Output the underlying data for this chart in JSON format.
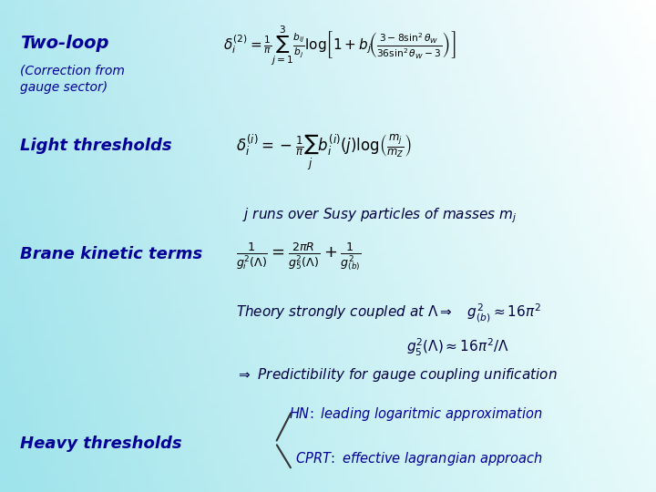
{
  "background_gradient": true,
  "bg_color_top_left": "#b0e8f0",
  "bg_color_bottom_right": "#ffffff",
  "title1": "Two-loop",
  "title1_color": "#000099",
  "title1_style": "bold italic",
  "title2": "(Correction from\ngauge sector)",
  "title2_color": "#000099",
  "title2_style": "italic",
  "label_light": "Light thresholds",
  "label_light_color": "#000099",
  "label_light_style": "bold italic",
  "label_brane": "Brane kinetic terms",
  "label_brane_color": "#000099",
  "label_brane_style": "bold italic",
  "label_heavy": "Heavy thresholds",
  "label_heavy_color": "#000099",
  "label_heavy_style": "bold italic",
  "eq1": "$\\delta_i^{(2)} = \\dfrac{1}{\\pi}\\displaystyle\\sum_{j=1}^{3}\\dfrac{b_{ij}}{b_j}\\log\\!\\left[1+b_j\\!\\left(\\dfrac{3-8\\sin^2\\theta_W}{36\\sin^2\\theta_W-3}\\right)\\right]$",
  "eq2": "$\\delta_i^{(i)} = -\\dfrac{1}{\\pi}\\displaystyle\\sum_j b_i^{(i)}(j)\\log\\!\\left(\\dfrac{m_j}{m_Z}\\right)$",
  "eq3_note": "$j$ runs over Susy particles of masses $m_j$",
  "eq4": "$\\dfrac{1}{g_i^2(\\Lambda)} = \\dfrac{2\\pi R}{g_5^2(\\Lambda)} + \\dfrac{1}{g_{(b)}^2}$",
  "eq5a": "Theory strongly coupled at $\\Lambda\\Rightarrow$ $g_{(b)}^2\\approx 16\\pi^2$",
  "eq5b": "$g_5^2(\\Lambda)\\approx 16\\pi^2/\\Lambda$",
  "eq6": "$\\Rightarrow$ $\\textit{Predictibility for gauge coupling unification}$",
  "eq7a": "$HN\\!:$ leading logaritmic approximation",
  "eq7b": "$CPRT\\!:$ effective lagrangian approach",
  "text_color_dark": "#000080",
  "text_color_eq": "#000000"
}
